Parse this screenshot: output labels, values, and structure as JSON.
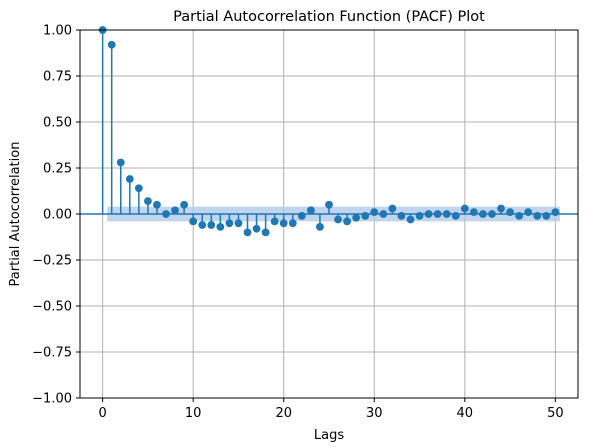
{
  "chart_data": {
    "type": "stem",
    "title": "Partial Autocorrelation Function (PACF) Plot",
    "xlabel": "Lags",
    "ylabel": "Partial Autocorrelation",
    "xlim": [
      -2.5,
      52.5
    ],
    "ylim": [
      -1.0,
      1.0
    ],
    "xticks": [
      0,
      10,
      20,
      30,
      40,
      50
    ],
    "xtick_labels": [
      "0",
      "10",
      "20",
      "30",
      "40",
      "50"
    ],
    "yticks": [
      -1.0,
      -0.75,
      -0.5,
      -0.25,
      0.0,
      0.25,
      0.5,
      0.75,
      1.0
    ],
    "ytick_labels": [
      "−1.00",
      "−0.75",
      "−0.50",
      "−0.25",
      "0.00",
      "0.25",
      "0.50",
      "0.75",
      "1.00"
    ],
    "grid": true,
    "series": [
      {
        "x": [
          0,
          1,
          2,
          3,
          4,
          5,
          6,
          7,
          8,
          9,
          10,
          11,
          12,
          13,
          14,
          15,
          16,
          17,
          18,
          19,
          20,
          21,
          22,
          23,
          24,
          25,
          26,
          27,
          28,
          29,
          30,
          31,
          32,
          33,
          34,
          35,
          36,
          37,
          38,
          39,
          40,
          41,
          42,
          43,
          44,
          45,
          46,
          47,
          48,
          49,
          50
        ],
        "values": [
          1.0,
          0.92,
          0.28,
          0.19,
          0.14,
          0.07,
          0.05,
          0.0,
          0.02,
          0.05,
          -0.04,
          -0.06,
          -0.06,
          -0.07,
          -0.05,
          -0.05,
          -0.1,
          -0.08,
          -0.1,
          -0.04,
          -0.05,
          -0.05,
          -0.01,
          0.02,
          -0.07,
          0.05,
          -0.03,
          -0.04,
          -0.02,
          -0.01,
          0.01,
          0.0,
          0.03,
          -0.01,
          -0.03,
          -0.01,
          0.0,
          0.0,
          0.0,
          -0.01,
          0.03,
          0.01,
          0.0,
          0.0,
          0.03,
          0.01,
          -0.01,
          0.01,
          -0.01,
          -0.01,
          0.01
        ]
      }
    ],
    "confidence_band": {
      "lower": -0.04,
      "upper": 0.04,
      "x_start": 0.5,
      "x_end": 50.5
    },
    "colors": {
      "series": "#1f77b4",
      "band": "#aec7e8",
      "grid": "#b0b0b0"
    }
  }
}
